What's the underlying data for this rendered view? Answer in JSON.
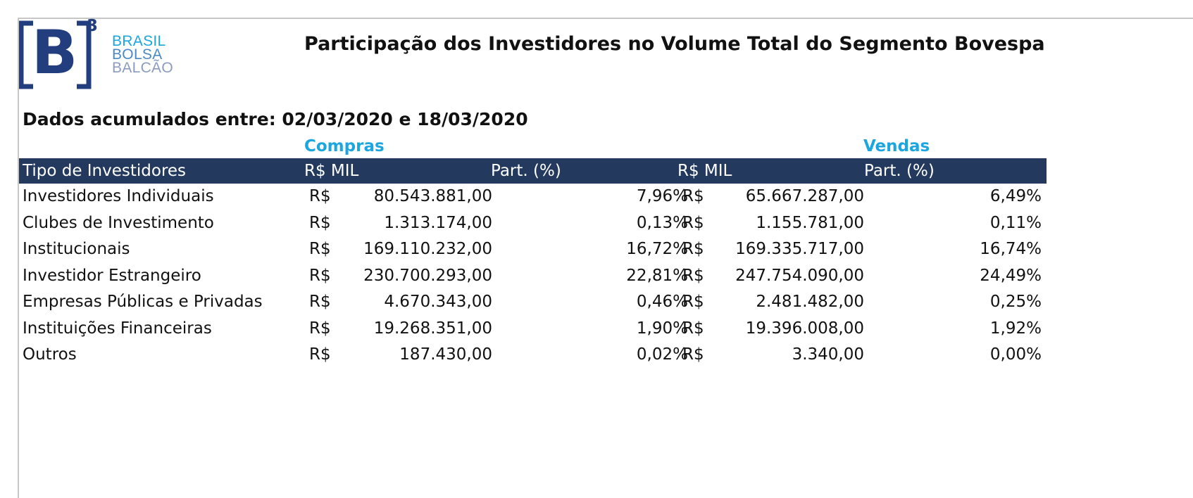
{
  "logo": {
    "mark": "B",
    "superscript": "3",
    "line1": "BRASIL",
    "line2": "BOLSA",
    "line3": "BALCÃO",
    "color_primary": "#233e7e",
    "color_accent": "#1ba6e0"
  },
  "title": "Participação dos Investidores no Volume Total do Segmento Bovespa",
  "subtitle": "Dados acumulados entre: 02/03/2020 e 18/03/2020",
  "groups": {
    "buy": "Compras",
    "sell": "Vendas"
  },
  "header": {
    "tipo": "Tipo de Investidores",
    "buy_value": "R$ MIL",
    "buy_pct": "Part. (%)",
    "sell_value": "R$ MIL",
    "sell_pct": "Part. (%)",
    "background": "#233a5e"
  },
  "rows": [
    {
      "name": "Investidores Individuais",
      "buy_currency": "R$",
      "buy_value": "80.543.881,00",
      "buy_pct": "7,96%",
      "sell_currency": "R$",
      "sell_value": "65.667.287,00",
      "sell_pct": "6,49%"
    },
    {
      "name": "Clubes de Investimento",
      "buy_currency": "R$",
      "buy_value": "1.313.174,00",
      "buy_pct": "0,13%",
      "sell_currency": "R$",
      "sell_value": "1.155.781,00",
      "sell_pct": "0,11%"
    },
    {
      "name": "Institucionais",
      "buy_currency": "R$",
      "buy_value": "169.110.232,00",
      "buy_pct": "16,72%",
      "sell_currency": "R$",
      "sell_value": "169.335.717,00",
      "sell_pct": "16,74%"
    },
    {
      "name": "Investidor Estrangeiro",
      "buy_currency": "R$",
      "buy_value": "230.700.293,00",
      "buy_pct": "22,81%",
      "sell_currency": "R$",
      "sell_value": "247.754.090,00",
      "sell_pct": "24,49%"
    },
    {
      "name": "Empresas Públicas e Privadas",
      "buy_currency": "R$",
      "buy_value": "4.670.343,00",
      "buy_pct": "0,46%",
      "sell_currency": "R$",
      "sell_value": "2.481.482,00",
      "sell_pct": "0,25%"
    },
    {
      "name": "Instituições Financeiras",
      "buy_currency": "R$",
      "buy_value": "19.268.351,00",
      "buy_pct": "1,90%",
      "sell_currency": "R$",
      "sell_value": "19.396.008,00",
      "sell_pct": "1,92%"
    },
    {
      "name": "Outros",
      "buy_currency": "R$",
      "buy_value": "187.430,00",
      "buy_pct": "0,02%",
      "sell_currency": "R$",
      "sell_value": "3.340,00",
      "sell_pct": "0,00%"
    }
  ]
}
